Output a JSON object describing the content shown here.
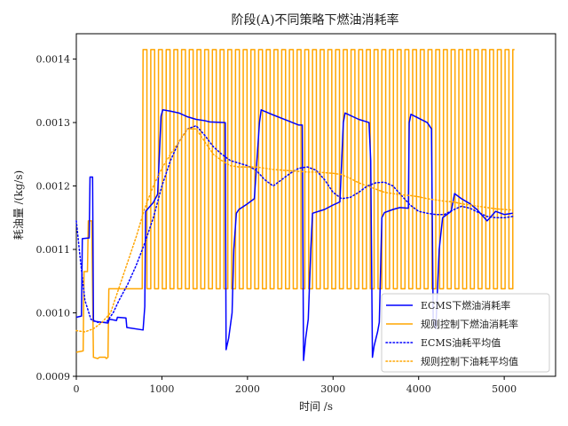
{
  "chart_data": {
    "type": "line",
    "title": "阶段(A)不同策略下燃油消耗率",
    "xlabel": "时间 /s",
    "ylabel": "耗油量 /(kg/s)",
    "xlim": [
      0,
      5600
    ],
    "ylim": [
      0.0009,
      0.00144
    ],
    "xticks": [
      "0",
      "1000",
      "2000",
      "3000",
      "4000",
      "5000"
    ],
    "yticks": [
      "0.0009",
      "0.0010",
      "0.0011",
      "0.0012",
      "0.0013",
      "0.0014"
    ],
    "grid": false,
    "legend_position": "bottom-right",
    "series": [
      {
        "name": "ECMS下燃油消耗率",
        "color": "#0000ff",
        "style": "solid",
        "points": [
          [
            0,
            0.000993
          ],
          [
            60,
            0.000995
          ],
          [
            70,
            0.001117
          ],
          [
            150,
            0.001118
          ],
          [
            160,
            0.001214
          ],
          [
            190,
            0.001214
          ],
          [
            200,
            0.000987
          ],
          [
            370,
            0.000984
          ],
          [
            385,
            0.00099
          ],
          [
            470,
            0.000988
          ],
          [
            480,
            0.000993
          ],
          [
            580,
            0.000992
          ],
          [
            590,
            0.000977
          ],
          [
            780,
            0.000973
          ],
          [
            800,
            0.00101
          ],
          [
            810,
            0.00116
          ],
          [
            900,
            0.001174
          ],
          [
            950,
            0.001187
          ],
          [
            990,
            0.00131
          ],
          [
            1010,
            0.00132
          ],
          [
            1100,
            0.001318
          ],
          [
            1200,
            0.001315
          ],
          [
            1300,
            0.001309
          ],
          [
            1400,
            0.001305
          ],
          [
            1500,
            0.001303
          ],
          [
            1560,
            0.001301
          ],
          [
            1740,
            0.0013
          ],
          [
            1750,
            0.000942
          ],
          [
            1780,
            0.00096
          ],
          [
            1820,
            0.001
          ],
          [
            1840,
            0.0011
          ],
          [
            1870,
            0.001157
          ],
          [
            1900,
            0.001163
          ],
          [
            2000,
            0.001172
          ],
          [
            2080,
            0.00118
          ],
          [
            2140,
            0.0013
          ],
          [
            2160,
            0.00132
          ],
          [
            2300,
            0.001312
          ],
          [
            2450,
            0.001304
          ],
          [
            2600,
            0.001296
          ],
          [
            2640,
            0.001296
          ],
          [
            2655,
            0.000925
          ],
          [
            2680,
            0.00096
          ],
          [
            2710,
            0.00099
          ],
          [
            2740,
            0.0011
          ],
          [
            2760,
            0.001157
          ],
          [
            2900,
            0.001163
          ],
          [
            3000,
            0.00117
          ],
          [
            3080,
            0.001175
          ],
          [
            3120,
            0.0013
          ],
          [
            3140,
            0.001315
          ],
          [
            3300,
            0.001305
          ],
          [
            3420,
            0.0013
          ],
          [
            3440,
            0.00124
          ],
          [
            3460,
            0.00093
          ],
          [
            3480,
            0.000948
          ],
          [
            3520,
            0.00097
          ],
          [
            3540,
            0.000985
          ],
          [
            3570,
            0.00115
          ],
          [
            3600,
            0.001158
          ],
          [
            3700,
            0.001163
          ],
          [
            3780,
            0.001166
          ],
          [
            3880,
            0.001165
          ],
          [
            3890,
            0.0013
          ],
          [
            3910,
            0.001313
          ],
          [
            4100,
            0.0013
          ],
          [
            4150,
            0.00129
          ],
          [
            4170,
            0.00099
          ],
          [
            4200,
            0.000975
          ],
          [
            4240,
            0.0011
          ],
          [
            4280,
            0.00115
          ],
          [
            4380,
            0.00116
          ],
          [
            4420,
            0.001188
          ],
          [
            4500,
            0.00118
          ],
          [
            4600,
            0.001172
          ],
          [
            4680,
            0.001163
          ],
          [
            4800,
            0.001145
          ],
          [
            4900,
            0.00116
          ],
          [
            5000,
            0.001155
          ],
          [
            5100,
            0.001157
          ]
        ]
      },
      {
        "name": "规则控制下燃油消耗率",
        "color": "#ffa500",
        "style": "solid",
        "segments": [
          [
            0,
            0.000938
          ],
          [
            80,
            0.00094
          ],
          [
            90,
            0.001065
          ],
          [
            130,
            0.001065
          ],
          [
            140,
            0.001145
          ],
          [
            180,
            0.001145
          ],
          [
            200,
            0.00093
          ],
          [
            250,
            0.000928
          ],
          [
            270,
            0.00093
          ],
          [
            340,
            0.00093
          ],
          [
            350,
            0.000928
          ],
          [
            370,
            0.00093
          ],
          [
            380,
            0.001038
          ],
          [
            770,
            0.001038
          ],
          [
            780,
            0.001415
          ]
        ],
        "square_wave": {
          "start": 780,
          "end": 5120,
          "high": 0.001415,
          "low": 0.001038,
          "period": 90
        }
      },
      {
        "name": "ECMS油耗平均值",
        "color": "#0000ff",
        "style": "dotted",
        "points": [
          [
            0,
            0.001145
          ],
          [
            50,
            0.00108
          ],
          [
            100,
            0.00102
          ],
          [
            170,
            0.00099
          ],
          [
            250,
            0.000985
          ],
          [
            350,
            0.000985
          ],
          [
            430,
            0.001
          ],
          [
            500,
            0.00102
          ],
          [
            600,
            0.001045
          ],
          [
            700,
            0.001075
          ],
          [
            800,
            0.00111
          ],
          [
            900,
            0.00115
          ],
          [
            1000,
            0.0012
          ],
          [
            1100,
            0.00124
          ],
          [
            1200,
            0.00127
          ],
          [
            1300,
            0.00129
          ],
          [
            1400,
            0.001295
          ],
          [
            1500,
            0.00128
          ],
          [
            1600,
            0.001262
          ],
          [
            1700,
            0.00125
          ],
          [
            1800,
            0.00124
          ],
          [
            1900,
            0.001236
          ],
          [
            2000,
            0.001232
          ],
          [
            2100,
            0.001225
          ],
          [
            2200,
            0.00121
          ],
          [
            2300,
            0.0012
          ],
          [
            2400,
            0.00121
          ],
          [
            2500,
            0.00122
          ],
          [
            2600,
            0.001228
          ],
          [
            2700,
            0.00123
          ],
          [
            2800,
            0.001225
          ],
          [
            2900,
            0.00121
          ],
          [
            3000,
            0.00119
          ],
          [
            3100,
            0.00118
          ],
          [
            3200,
            0.001182
          ],
          [
            3300,
            0.00119
          ],
          [
            3400,
            0.0012
          ],
          [
            3500,
            0.001205
          ],
          [
            3600,
            0.001206
          ],
          [
            3700,
            0.0012
          ],
          [
            3800,
            0.001185
          ],
          [
            3900,
            0.00117
          ],
          [
            4000,
            0.00116
          ],
          [
            4100,
            0.001157
          ],
          [
            4200,
            0.001155
          ],
          [
            4300,
            0.001155
          ],
          [
            4400,
            0.001162
          ],
          [
            4500,
            0.001168
          ],
          [
            4600,
            0.001165
          ],
          [
            4700,
            0.001158
          ],
          [
            4800,
            0.001152
          ],
          [
            4900,
            0.00115
          ],
          [
            5000,
            0.00115
          ],
          [
            5100,
            0.001152
          ]
        ]
      },
      {
        "name": "规则控制下油耗平均值",
        "color": "#ffa500",
        "style": "dotted",
        "points": [
          [
            0,
            0.000972
          ],
          [
            100,
            0.00097
          ],
          [
            200,
            0.000975
          ],
          [
            300,
            0.000985
          ],
          [
            400,
            0.001
          ],
          [
            500,
            0.00104
          ],
          [
            600,
            0.00108
          ],
          [
            700,
            0.00112
          ],
          [
            800,
            0.001165
          ],
          [
            900,
            0.0012
          ],
          [
            1000,
            0.001228
          ],
          [
            1100,
            0.00125
          ],
          [
            1200,
            0.00127
          ],
          [
            1300,
            0.00129
          ],
          [
            1400,
            0.00129
          ],
          [
            1500,
            0.00127
          ],
          [
            1600,
            0.00125
          ],
          [
            1700,
            0.00124
          ],
          [
            1800,
            0.001232
          ],
          [
            1900,
            0.00123
          ],
          [
            2000,
            0.00123
          ],
          [
            2100,
            0.00123
          ],
          [
            2200,
            0.001228
          ],
          [
            2300,
            0.001226
          ],
          [
            2400,
            0.001225
          ],
          [
            2500,
            0.001224
          ],
          [
            2600,
            0.001223
          ],
          [
            2700,
            0.001222
          ],
          [
            2800,
            0.001222
          ],
          [
            2900,
            0.001221
          ],
          [
            3000,
            0.00122
          ],
          [
            3100,
            0.001218
          ],
          [
            3200,
            0.001212
          ],
          [
            3300,
            0.001205
          ],
          [
            3400,
            0.0012
          ],
          [
            3500,
            0.001195
          ],
          [
            3600,
            0.00119
          ],
          [
            3700,
            0.001188
          ],
          [
            3800,
            0.001186
          ],
          [
            3900,
            0.001185
          ],
          [
            4000,
            0.001183
          ],
          [
            4100,
            0.00118
          ],
          [
            4200,
            0.001178
          ],
          [
            4300,
            0.001176
          ],
          [
            4400,
            0.001175
          ],
          [
            4500,
            0.001172
          ],
          [
            4600,
            0.00117
          ],
          [
            4700,
            0.001168
          ],
          [
            4800,
            0.001166
          ],
          [
            4900,
            0.001164
          ],
          [
            5000,
            0.001163
          ],
          [
            5100,
            0.001162
          ]
        ]
      }
    ]
  }
}
